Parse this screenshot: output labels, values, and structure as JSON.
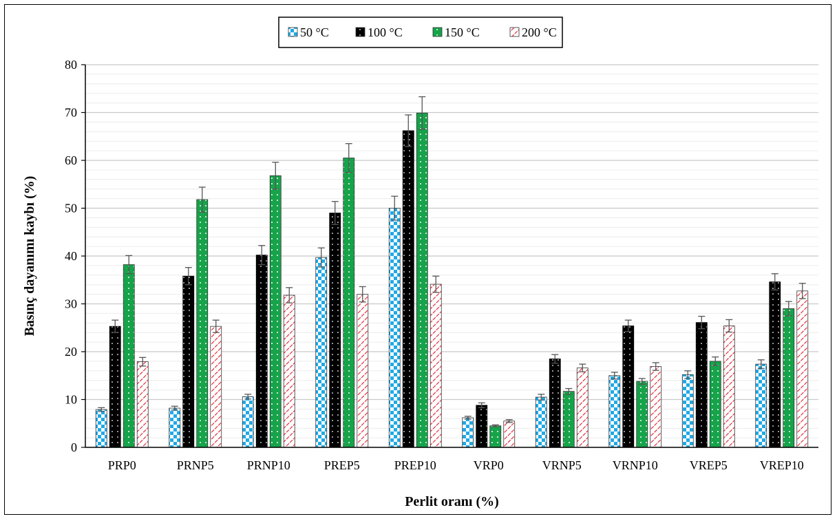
{
  "chart_data": {
    "type": "bar",
    "title": "",
    "xlabel": "Perlit oranı (%)",
    "ylabel": "Basınç dayanımı kaybı (%)",
    "ylim": [
      0,
      80
    ],
    "yticks": [
      0,
      10,
      20,
      30,
      40,
      50,
      60,
      70,
      80
    ],
    "grid": true,
    "legend_position": "top-center",
    "categories": [
      "PRP0",
      "PRNP5",
      "PRNP10",
      "PREP5",
      "PREP10",
      "VRP0",
      "VRNP5",
      "VRNP10",
      "VREP5",
      "VREP10"
    ],
    "series": [
      {
        "name": "50 °C",
        "pattern": "checker",
        "color": "#1fa9e6",
        "values": [
          7.9,
          8.2,
          10.6,
          39.7,
          50.0,
          6.2,
          10.5,
          15.0,
          15.2,
          17.4
        ],
        "errors": [
          0.4,
          0.4,
          0.5,
          2.0,
          2.5,
          0.3,
          0.6,
          0.7,
          0.8,
          0.9
        ]
      },
      {
        "name": "100 °C",
        "pattern": "dots",
        "color": "#000000",
        "values": [
          25.3,
          35.8,
          40.2,
          49.0,
          66.2,
          8.8,
          18.5,
          25.4,
          26.1,
          34.6
        ],
        "errors": [
          1.3,
          1.8,
          2.0,
          2.4,
          3.3,
          0.5,
          0.9,
          1.2,
          1.3,
          1.7
        ]
      },
      {
        "name": "150 °C",
        "pattern": "dots",
        "color": "#16a34a",
        "values": [
          38.2,
          51.8,
          56.8,
          60.5,
          69.9,
          4.5,
          11.7,
          13.8,
          18.0,
          29.0
        ],
        "errors": [
          1.9,
          2.6,
          2.8,
          3.0,
          3.4,
          0.2,
          0.6,
          0.6,
          0.9,
          1.5
        ]
      },
      {
        "name": "200 °C",
        "pattern": "diagonal",
        "color": "#e11d2a",
        "values": [
          17.9,
          25.3,
          31.8,
          32.0,
          34.1,
          5.5,
          16.6,
          16.9,
          25.4,
          32.7
        ],
        "errors": [
          0.9,
          1.3,
          1.6,
          1.6,
          1.7,
          0.3,
          0.8,
          0.8,
          1.3,
          1.6
        ]
      }
    ]
  }
}
